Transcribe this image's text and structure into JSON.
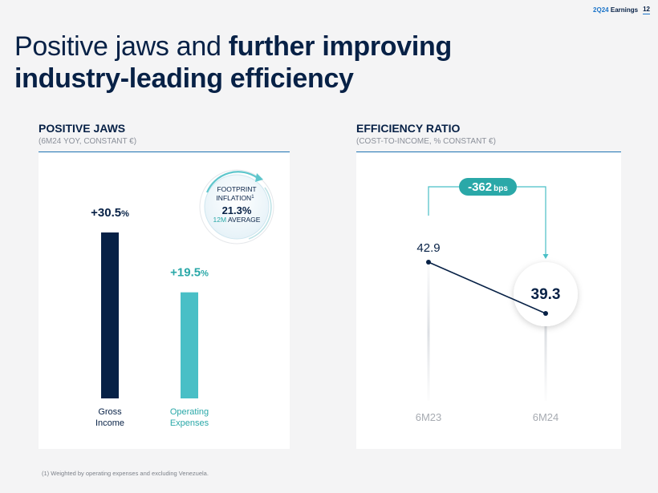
{
  "header": {
    "tag_prefix": "2Q24",
    "tag_suffix": "Earnings",
    "page_number": "12"
  },
  "title": {
    "light": "Positive jaws and ",
    "bold_1": "further improving",
    "bold_2": "industry-leading efficiency"
  },
  "left_section": {
    "title": "POSITIVE JAWS",
    "subtitle": "(6M24 YOY, CONSTANT €)"
  },
  "right_section": {
    "title": "EFFICIENCY RATIO",
    "subtitle": "(COST-TO-INCOME, % CONSTANT €)"
  },
  "badge": {
    "line1": "FOOTPRINT",
    "line2": "INFLATION",
    "sup": "1",
    "value": "21.3%",
    "avg_accent": "12M",
    "avg_rest": "AVERAGE"
  },
  "footnote": "(1) Weighted by operating expenses and excluding Venezuela.",
  "colors": {
    "navy": "#072146",
    "teal": "#49bfc6",
    "teal_dark": "#2aa8a8",
    "blue_accent": "#1d73b2"
  },
  "chart_data": [
    {
      "type": "bar",
      "title": "POSITIVE JAWS",
      "categories": [
        "Gross Income",
        "Operating Expenses"
      ],
      "category_lines": [
        [
          "Gross",
          "Income"
        ],
        [
          "Operating",
          "Expenses"
        ]
      ],
      "values": [
        30.5,
        19.5
      ],
      "labels": [
        {
          "num": "+30.5",
          "unit": "%"
        },
        {
          "num": "+19.5",
          "unit": "%"
        }
      ],
      "ylim": [
        0,
        40
      ]
    },
    {
      "type": "line",
      "title": "EFFICIENCY RATIO",
      "categories": [
        "6M23",
        "6M24"
      ],
      "values": [
        42.9,
        39.3
      ],
      "ylim": [
        30,
        50
      ],
      "change": {
        "num": "-362",
        "unit": "bps"
      }
    }
  ]
}
